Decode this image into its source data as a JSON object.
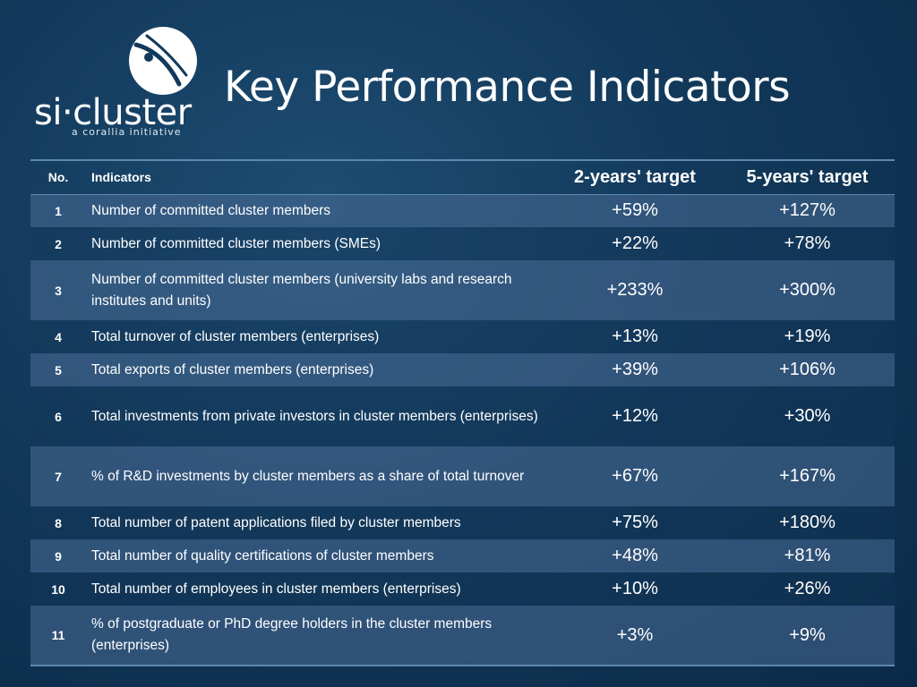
{
  "logo": {
    "name": "si·cluster",
    "tagline": "a corallia initiative"
  },
  "title": "Key Performance Indicators",
  "table": {
    "headers": {
      "no": "No.",
      "indicator": "Indicators",
      "target_2y": "2-years' target",
      "target_5y": "5-years' target"
    },
    "rows": [
      {
        "no": "1",
        "indicator": "Number of committed cluster members",
        "target_2y": "+59%",
        "target_5y": "+127%"
      },
      {
        "no": "2",
        "indicator": "Number of committed cluster members (SMEs)",
        "target_2y": "+22%",
        "target_5y": "+78%"
      },
      {
        "no": "3",
        "indicator": "Number of committed cluster members (university labs and research institutes and units)",
        "target_2y": "+233%",
        "target_5y": "+300%"
      },
      {
        "no": "4",
        "indicator": "Total turnover of cluster members (enterprises)",
        "target_2y": "+13%",
        "target_5y": "+19%"
      },
      {
        "no": "5",
        "indicator": "Total exports of cluster members (enterprises)",
        "target_2y": "+39%",
        "target_5y": "+106%"
      },
      {
        "no": "6",
        "indicator": "Total investments from private investors in cluster members (enterprises)",
        "target_2y": "+12%",
        "target_5y": "+30%"
      },
      {
        "no": "7",
        "indicator": "% of R&D investments by cluster members as a share of total turnover",
        "target_2y": "+67%",
        "target_5y": "+167%"
      },
      {
        "no": "8",
        "indicator": "Total number of patent applications filed by cluster members",
        "target_2y": "+75%",
        "target_5y": "+180%"
      },
      {
        "no": "9",
        "indicator": "Total number of quality certifications of cluster members",
        "target_2y": "+48%",
        "target_5y": "+81%"
      },
      {
        "no": "10",
        "indicator": "Total number of employees in cluster members (enterprises)",
        "target_2y": "+10%",
        "target_5y": "+26%"
      },
      {
        "no": "11",
        "indicator": "% of postgraduate or PhD degree holders in the cluster members (enterprises)",
        "target_2y": "+3%",
        "target_5y": "+9%"
      }
    ]
  }
}
